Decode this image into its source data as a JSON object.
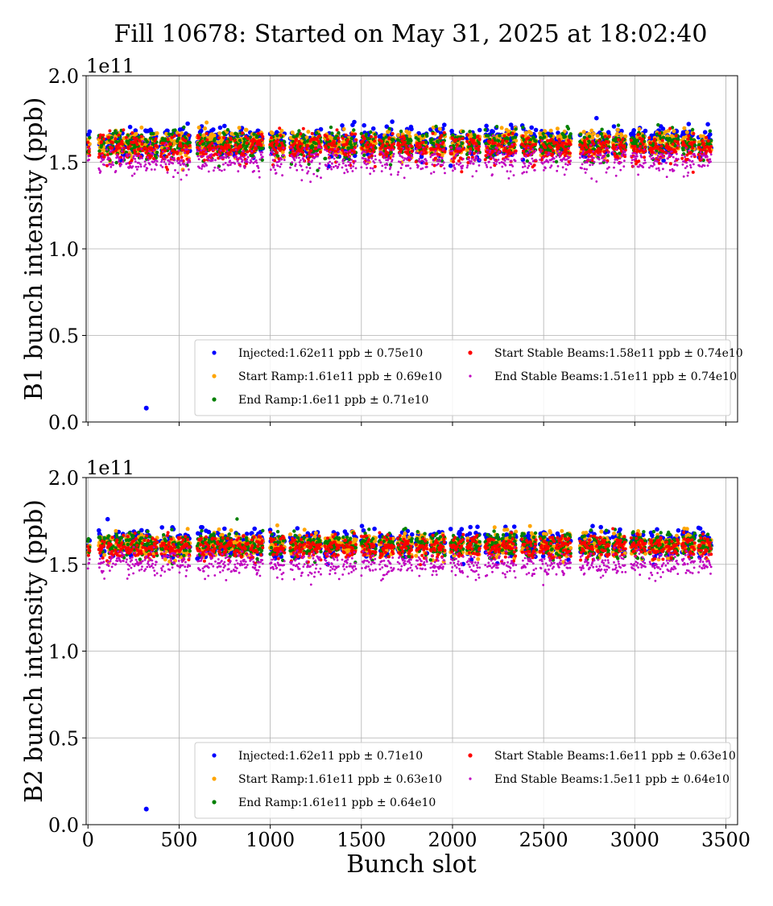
{
  "chart_data": {
    "type": "scatter",
    "title": "Fill 10678: Started on May 31, 2025 at 18:02:40",
    "xlabel": "Bunch slot",
    "xlim": [
      -10,
      3564
    ],
    "xticks": [
      0,
      500,
      1000,
      1500,
      2000,
      2500,
      3000,
      3500
    ],
    "xtick_labels": [
      "0",
      "500",
      "1000",
      "1500",
      "2000",
      "2500",
      "3000",
      "3500"
    ],
    "grid": true,
    "bunch_trains": [
      [
        0,
        10
      ],
      [
        60,
        90
      ],
      [
        105,
        140
      ],
      [
        150,
        200
      ],
      [
        210,
        300
      ],
      [
        310,
        380
      ],
      [
        400,
        480
      ],
      [
        490,
        560
      ],
      [
        600,
        700
      ],
      [
        710,
        790
      ],
      [
        800,
        880
      ],
      [
        890,
        960
      ],
      [
        1000,
        1080
      ],
      [
        1110,
        1190
      ],
      [
        1200,
        1280
      ],
      [
        1300,
        1380
      ],
      [
        1395,
        1470
      ],
      [
        1500,
        1580
      ],
      [
        1600,
        1680
      ],
      [
        1700,
        1780
      ],
      [
        1800,
        1860
      ],
      [
        1880,
        1960
      ],
      [
        1990,
        2060
      ],
      [
        2080,
        2150
      ],
      [
        2180,
        2260
      ],
      [
        2270,
        2350
      ],
      [
        2380,
        2460
      ],
      [
        2480,
        2560
      ],
      [
        2570,
        2650
      ],
      [
        2700,
        2780
      ],
      [
        2790,
        2860
      ],
      [
        2880,
        2950
      ],
      [
        2980,
        3060
      ],
      [
        3080,
        3160
      ],
      [
        3170,
        3240
      ],
      [
        3260,
        3330
      ],
      [
        3350,
        3420
      ]
    ],
    "panels": [
      {
        "ylabel": "B1 bunch intensity (ppb)",
        "y_offset_label": "1e11",
        "ylim": [
          0,
          2.0
        ],
        "yticks": [
          0.0,
          0.5,
          1.0,
          1.5,
          2.0
        ],
        "ytick_labels": [
          "0.0",
          "0.5",
          "1.0",
          "1.5",
          "2.0"
        ],
        "legend_position": "lower-right",
        "outliers": [
          {
            "series": "Injected",
            "x": 320,
            "y": 0.08
          }
        ],
        "series": [
          {
            "name": "Injected:1.62e11 ppb ± 0.75e10",
            "color": "#0000ff",
            "mean": 1.62,
            "spread": 0.075
          },
          {
            "name": "Start Ramp:1.61e11 ppb ± 0.69e10",
            "color": "#ffa500",
            "mean": 1.61,
            "spread": 0.069
          },
          {
            "name": "End Ramp:1.6e11 ppb ± 0.71e10",
            "color": "#008000",
            "mean": 1.6,
            "spread": 0.071
          },
          {
            "name": "Start Stable Beams:1.58e11 ppb ± 0.74e10",
            "color": "#ff0000",
            "mean": 1.58,
            "spread": 0.074
          },
          {
            "name": "End Stable Beams:1.51e11 ppb ± 0.74e10",
            "color": "#bf00bf",
            "mean": 1.51,
            "spread": 0.074
          }
        ]
      },
      {
        "ylabel": "B2 bunch intensity (ppb)",
        "y_offset_label": "1e11",
        "ylim": [
          0,
          2.0
        ],
        "yticks": [
          0.0,
          0.5,
          1.0,
          1.5,
          2.0
        ],
        "ytick_labels": [
          "0.0",
          "0.5",
          "1.0",
          "1.5",
          "2.0"
        ],
        "legend_position": "lower-right",
        "outliers": [
          {
            "series": "Injected",
            "x": 320,
            "y": 0.09
          }
        ],
        "series": [
          {
            "name": "Injected:1.62e11 ppb ± 0.71e10",
            "color": "#0000ff",
            "mean": 1.62,
            "spread": 0.071
          },
          {
            "name": "Start Ramp:1.61e11 ppb ± 0.63e10",
            "color": "#ffa500",
            "mean": 1.61,
            "spread": 0.063
          },
          {
            "name": "End Ramp:1.61e11 ppb ± 0.64e10",
            "color": "#008000",
            "mean": 1.61,
            "spread": 0.064
          },
          {
            "name": "Start Stable Beams:1.6e11 ppb ± 0.63e10",
            "color": "#ff0000",
            "mean": 1.6,
            "spread": 0.063
          },
          {
            "name": "End Stable Beams:1.5e11 ppb ± 0.64e10",
            "color": "#bf00bf",
            "mean": 1.5,
            "spread": 0.064
          }
        ]
      }
    ]
  }
}
